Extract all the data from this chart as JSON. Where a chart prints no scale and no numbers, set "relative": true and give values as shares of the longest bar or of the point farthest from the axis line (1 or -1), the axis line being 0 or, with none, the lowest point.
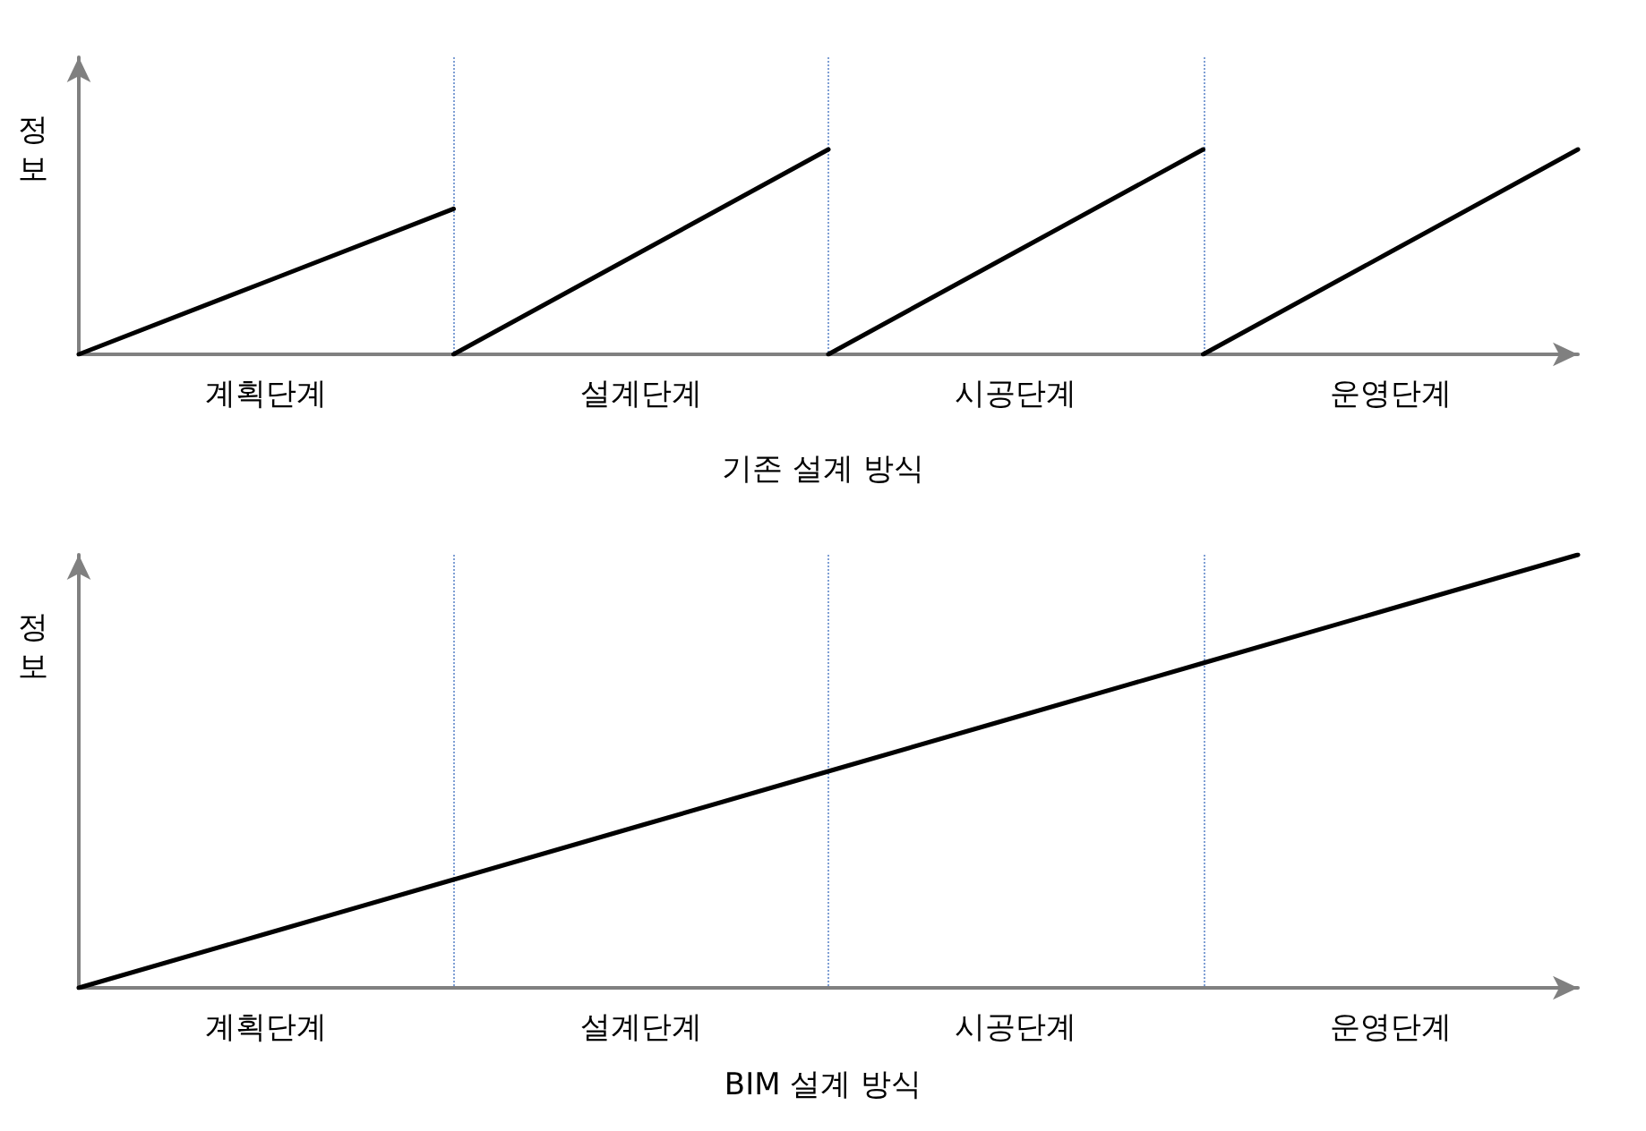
{
  "chart_data": [
    {
      "type": "line",
      "title": "기존 설계 방식",
      "ylabel": "정보",
      "relative": true,
      "tick_labels": "x",
      "grid": "x",
      "marker": "none",
      "line_style": "solid",
      "categories": [
        null,
        "계획단계",
        null,
        "설계단계",
        null,
        "시공단계",
        null,
        "운영단계",
        null
      ],
      "series": [
        {
          "color": "#000000",
          "values": [
            0,
            0.355,
            0.71,
            null,
            null,
            null,
            null,
            null,
            null
          ]
        },
        {
          "color": "#000000",
          "values": [
            null,
            null,
            0,
            0.5,
            1,
            null,
            null,
            null,
            null
          ]
        },
        {
          "color": "#000000",
          "values": [
            null,
            null,
            null,
            null,
            0,
            0.5,
            1,
            null,
            null
          ]
        },
        {
          "color": "#000000",
          "values": [
            null,
            null,
            null,
            null,
            null,
            null,
            0,
            0.5,
            1
          ]
        }
      ]
    },
    {
      "type": "line",
      "title": "BIM 설계 방식",
      "ylabel": "정보",
      "relative": true,
      "tick_labels": "x",
      "grid": "x",
      "marker": "none",
      "line_style": "solid",
      "categories": [
        null,
        "계획단계",
        null,
        "설계단계",
        null,
        "시공단계",
        null,
        "운영단계",
        null
      ],
      "series": [
        {
          "color": "#000000",
          "values": [
            0,
            0.125,
            0.25,
            0.375,
            0.5,
            0.625,
            0.75,
            0.875,
            1
          ]
        }
      ]
    }
  ]
}
